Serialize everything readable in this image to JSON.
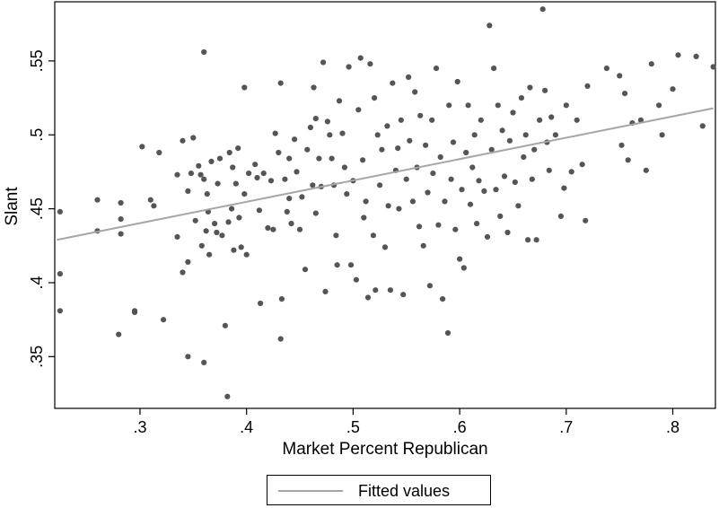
{
  "chart_data": {
    "type": "scatter",
    "xlabel": "Market Percent Republican",
    "ylabel": "Slant",
    "xlim": [
      0.22,
      0.84
    ],
    "ylim": [
      0.315,
      0.59
    ],
    "x_ticks": [
      0.3,
      0.4,
      0.5,
      0.6,
      0.7,
      0.8
    ],
    "x_tick_labels": [
      ".3",
      ".4",
      ".5",
      ".6",
      ".7",
      ".8"
    ],
    "y_ticks": [
      0.35,
      0.4,
      0.45,
      0.5,
      0.55
    ],
    "y_tick_labels": [
      ".35",
      ".4",
      ".45",
      ".5",
      ".55"
    ],
    "grid": false,
    "legend_position": "bottom-center",
    "marker_color": "#555555",
    "fit_color": "#a6a6a6",
    "fitted_line": {
      "name": "Fitted values",
      "x": [
        0.222,
        0.838
      ],
      "y": [
        0.429,
        0.518
      ]
    },
    "points": [
      [
        0.225,
        0.448
      ],
      [
        0.225,
        0.406
      ],
      [
        0.225,
        0.381
      ],
      [
        0.26,
        0.456
      ],
      [
        0.26,
        0.435
      ],
      [
        0.282,
        0.454
      ],
      [
        0.282,
        0.443
      ],
      [
        0.282,
        0.433
      ],
      [
        0.28,
        0.365
      ],
      [
        0.295,
        0.381
      ],
      [
        0.295,
        0.38
      ],
      [
        0.302,
        0.492
      ],
      [
        0.31,
        0.456
      ],
      [
        0.313,
        0.452
      ],
      [
        0.322,
        0.375
      ],
      [
        0.318,
        0.488
      ],
      [
        0.335,
        0.473
      ],
      [
        0.335,
        0.431
      ],
      [
        0.34,
        0.496
      ],
      [
        0.34,
        0.407
      ],
      [
        0.345,
        0.462
      ],
      [
        0.345,
        0.414
      ],
      [
        0.345,
        0.35
      ],
      [
        0.348,
        0.474
      ],
      [
        0.35,
        0.498
      ],
      [
        0.352,
        0.442
      ],
      [
        0.355,
        0.479
      ],
      [
        0.357,
        0.473
      ],
      [
        0.358,
        0.425
      ],
      [
        0.36,
        0.556
      ],
      [
        0.36,
        0.346
      ],
      [
        0.36,
        0.47
      ],
      [
        0.363,
        0.46
      ],
      [
        0.362,
        0.435
      ],
      [
        0.364,
        0.448
      ],
      [
        0.365,
        0.419
      ],
      [
        0.367,
        0.482
      ],
      [
        0.37,
        0.44
      ],
      [
        0.372,
        0.434
      ],
      [
        0.375,
        0.484
      ],
      [
        0.373,
        0.467
      ],
      [
        0.377,
        0.432
      ],
      [
        0.38,
        0.371
      ],
      [
        0.382,
        0.323
      ],
      [
        0.384,
        0.488
      ],
      [
        0.383,
        0.441
      ],
      [
        0.387,
        0.478
      ],
      [
        0.386,
        0.45
      ],
      [
        0.388,
        0.422
      ],
      [
        0.39,
        0.467
      ],
      [
        0.392,
        0.491
      ],
      [
        0.393,
        0.444
      ],
      [
        0.395,
        0.424
      ],
      [
        0.398,
        0.532
      ],
      [
        0.398,
        0.46
      ],
      [
        0.402,
        0.474
      ],
      [
        0.4,
        0.419
      ],
      [
        0.408,
        0.48
      ],
      [
        0.41,
        0.471
      ],
      [
        0.412,
        0.449
      ],
      [
        0.413,
        0.386
      ],
      [
        0.416,
        0.474
      ],
      [
        0.42,
        0.437
      ],
      [
        0.423,
        0.469
      ],
      [
        0.425,
        0.436
      ],
      [
        0.427,
        0.501
      ],
      [
        0.43,
        0.488
      ],
      [
        0.432,
        0.535
      ],
      [
        0.432,
        0.362
      ],
      [
        0.433,
        0.389
      ],
      [
        0.436,
        0.47
      ],
      [
        0.438,
        0.448
      ],
      [
        0.44,
        0.484
      ],
      [
        0.44,
        0.457
      ],
      [
        0.442,
        0.44
      ],
      [
        0.445,
        0.497
      ],
      [
        0.447,
        0.475
      ],
      [
        0.45,
        0.436
      ],
      [
        0.452,
        0.458
      ],
      [
        0.455,
        0.409
      ],
      [
        0.457,
        0.49
      ],
      [
        0.46,
        0.505
      ],
      [
        0.462,
        0.466
      ],
      [
        0.463,
        0.532
      ],
      [
        0.465,
        0.511
      ],
      [
        0.465,
        0.447
      ],
      [
        0.468,
        0.484
      ],
      [
        0.47,
        0.465
      ],
      [
        0.472,
        0.549
      ],
      [
        0.474,
        0.394
      ],
      [
        0.476,
        0.509
      ],
      [
        0.478,
        0.5
      ],
      [
        0.48,
        0.484
      ],
      [
        0.482,
        0.466
      ],
      [
        0.484,
        0.432
      ],
      [
        0.485,
        0.412
      ],
      [
        0.487,
        0.523
      ],
      [
        0.49,
        0.501
      ],
      [
        0.492,
        0.478
      ],
      [
        0.494,
        0.46
      ],
      [
        0.496,
        0.546
      ],
      [
        0.498,
        0.412
      ],
      [
        0.5,
        0.469
      ],
      [
        0.503,
        0.402
      ],
      [
        0.505,
        0.517
      ],
      [
        0.507,
        0.552
      ],
      [
        0.509,
        0.483
      ],
      [
        0.51,
        0.444
      ],
      [
        0.512,
        0.455
      ],
      [
        0.514,
        0.39
      ],
      [
        0.516,
        0.548
      ],
      [
        0.519,
        0.432
      ],
      [
        0.52,
        0.525
      ],
      [
        0.521,
        0.395
      ],
      [
        0.523,
        0.5
      ],
      [
        0.525,
        0.466
      ],
      [
        0.527,
        0.49
      ],
      [
        0.53,
        0.424
      ],
      [
        0.532,
        0.506
      ],
      [
        0.533,
        0.452
      ],
      [
        0.535,
        0.395
      ],
      [
        0.537,
        0.535
      ],
      [
        0.54,
        0.476
      ],
      [
        0.542,
        0.491
      ],
      [
        0.543,
        0.45
      ],
      [
        0.545,
        0.51
      ],
      [
        0.547,
        0.392
      ],
      [
        0.55,
        0.47
      ],
      [
        0.552,
        0.539
      ],
      [
        0.553,
        0.496
      ],
      [
        0.556,
        0.455
      ],
      [
        0.558,
        0.529
      ],
      [
        0.56,
        0.478
      ],
      [
        0.562,
        0.438
      ],
      [
        0.563,
        0.513
      ],
      [
        0.566,
        0.425
      ],
      [
        0.568,
        0.493
      ],
      [
        0.57,
        0.461
      ],
      [
        0.572,
        0.398
      ],
      [
        0.574,
        0.51
      ],
      [
        0.575,
        0.474
      ],
      [
        0.578,
        0.545
      ],
      [
        0.58,
        0.439
      ],
      [
        0.582,
        0.485
      ],
      [
        0.584,
        0.389
      ],
      [
        0.586,
        0.455
      ],
      [
        0.589,
        0.366
      ],
      [
        0.59,
        0.52
      ],
      [
        0.592,
        0.47
      ],
      [
        0.594,
        0.495
      ],
      [
        0.596,
        0.436
      ],
      [
        0.598,
        0.536
      ],
      [
        0.6,
        0.416
      ],
      [
        0.602,
        0.463
      ],
      [
        0.604,
        0.41
      ],
      [
        0.606,
        0.488
      ],
      [
        0.608,
        0.52
      ],
      [
        0.61,
        0.453
      ],
      [
        0.612,
        0.478
      ],
      [
        0.614,
        0.5
      ],
      [
        0.616,
        0.44
      ],
      [
        0.618,
        0.469
      ],
      [
        0.62,
        0.51
      ],
      [
        0.623,
        0.462
      ],
      [
        0.626,
        0.431
      ],
      [
        0.628,
        0.574
      ],
      [
        0.63,
        0.49
      ],
      [
        0.632,
        0.545
      ],
      [
        0.634,
        0.463
      ],
      [
        0.636,
        0.52
      ],
      [
        0.638,
        0.445
      ],
      [
        0.64,
        0.503
      ],
      [
        0.642,
        0.472
      ],
      [
        0.645,
        0.434
      ],
      [
        0.647,
        0.496
      ],
      [
        0.65,
        0.515
      ],
      [
        0.652,
        0.468
      ],
      [
        0.655,
        0.452
      ],
      [
        0.658,
        0.525
      ],
      [
        0.66,
        0.485
      ],
      [
        0.662,
        0.5
      ],
      [
        0.664,
        0.429
      ],
      [
        0.666,
        0.532
      ],
      [
        0.668,
        0.47
      ],
      [
        0.67,
        0.49
      ],
      [
        0.672,
        0.429
      ],
      [
        0.675,
        0.51
      ],
      [
        0.678,
        0.585
      ],
      [
        0.68,
        0.53
      ],
      [
        0.682,
        0.495
      ],
      [
        0.684,
        0.476
      ],
      [
        0.686,
        0.512
      ],
      [
        0.69,
        0.5
      ],
      [
        0.695,
        0.445
      ],
      [
        0.698,
        0.464
      ],
      [
        0.7,
        0.52
      ],
      [
        0.705,
        0.475
      ],
      [
        0.71,
        0.51
      ],
      [
        0.715,
        0.48
      ],
      [
        0.718,
        0.442
      ],
      [
        0.72,
        0.533
      ],
      [
        0.738,
        0.545
      ],
      [
        0.75,
        0.54
      ],
      [
        0.752,
        0.493
      ],
      [
        0.755,
        0.528
      ],
      [
        0.758,
        0.483
      ],
      [
        0.762,
        0.508
      ],
      [
        0.77,
        0.51
      ],
      [
        0.775,
        0.476
      ],
      [
        0.78,
        0.548
      ],
      [
        0.787,
        0.52
      ],
      [
        0.79,
        0.5
      ],
      [
        0.8,
        0.531
      ],
      [
        0.805,
        0.554
      ],
      [
        0.822,
        0.553
      ],
      [
        0.828,
        0.506
      ],
      [
        0.838,
        0.546
      ]
    ]
  }
}
